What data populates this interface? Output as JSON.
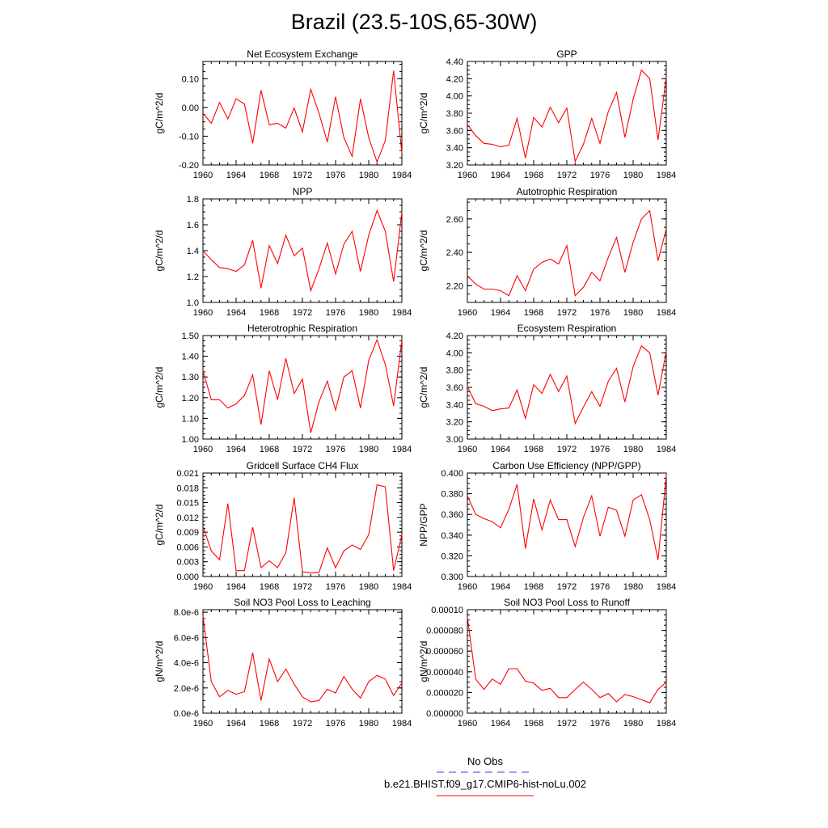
{
  "title": "Brazil (23.5-10S,65-30W)",
  "years": [
    1960,
    1961,
    1962,
    1963,
    1964,
    1965,
    1966,
    1967,
    1968,
    1969,
    1970,
    1971,
    1972,
    1973,
    1974,
    1975,
    1976,
    1977,
    1978,
    1979,
    1980,
    1981,
    1982,
    1983,
    1984
  ],
  "legend": {
    "obs_label": "No Obs",
    "case_label": "b.e21.BHIST.f09_g17.CMIP6-hist-noLu.002",
    "obs_color": "#3a3aff",
    "case_color": "#ff0000"
  },
  "chart_data": [
    {
      "type": "line",
      "title": "Net Ecosystem Exchange",
      "ylabel": "gC/m^2/d",
      "xlim": [
        1960,
        1984
      ],
      "ylim": [
        -0.2,
        0.16
      ],
      "xticks": [
        1960,
        1964,
        1968,
        1972,
        1976,
        1980,
        1984
      ],
      "yticks": [
        -0.2,
        -0.1,
        0,
        0.1
      ],
      "ytick_labels": [
        "-0.20",
        "-0.10",
        "0.00",
        "0.10"
      ],
      "values": [
        -0.02,
        -0.055,
        0.017,
        -0.04,
        0.03,
        0.012,
        -0.125,
        0.06,
        -0.06,
        -0.055,
        -0.072,
        -0.002,
        -0.085,
        0.063,
        -0.02,
        -0.12,
        0.037,
        -0.105,
        -0.17,
        0.03,
        -0.105,
        -0.19,
        -0.115,
        0.128,
        -0.16
      ]
    },
    {
      "type": "line",
      "title": "GPP",
      "ylabel": "gC/m^2/d",
      "xlim": [
        1960,
        1984
      ],
      "ylim": [
        3.2,
        4.4
      ],
      "xticks": [
        1960,
        1964,
        1968,
        1972,
        1976,
        1980,
        1984
      ],
      "yticks": [
        3.2,
        3.4,
        3.6,
        3.8,
        4.0,
        4.2,
        4.4
      ],
      "ytick_labels": [
        "3.20",
        "3.40",
        "3.60",
        "3.80",
        "4.00",
        "4.20",
        "4.40"
      ],
      "values": [
        3.67,
        3.54,
        3.45,
        3.44,
        3.41,
        3.43,
        3.74,
        3.28,
        3.75,
        3.64,
        3.87,
        3.69,
        3.86,
        3.24,
        3.44,
        3.74,
        3.45,
        3.82,
        4.04,
        3.52,
        3.96,
        4.3,
        4.2,
        3.49,
        4.22
      ]
    },
    {
      "type": "line",
      "title": "NPP",
      "ylabel": "gC/m^2/d",
      "xlim": [
        1960,
        1984
      ],
      "ylim": [
        1.0,
        1.8
      ],
      "xticks": [
        1960,
        1964,
        1968,
        1972,
        1976,
        1980,
        1984
      ],
      "yticks": [
        1.0,
        1.2,
        1.4,
        1.6,
        1.8
      ],
      "ytick_labels": [
        "1.0",
        "1.2",
        "1.4",
        "1.6",
        "1.8"
      ],
      "values": [
        1.4,
        1.33,
        1.27,
        1.26,
        1.24,
        1.29,
        1.48,
        1.11,
        1.44,
        1.3,
        1.52,
        1.36,
        1.42,
        1.09,
        1.26,
        1.46,
        1.22,
        1.45,
        1.55,
        1.24,
        1.52,
        1.71,
        1.55,
        1.16,
        1.7
      ]
    },
    {
      "type": "line",
      "title": "Autotrophic Respiration",
      "ylabel": "gC/m^2/d",
      "xlim": [
        1960,
        1984
      ],
      "ylim": [
        2.1,
        2.72
      ],
      "xticks": [
        1960,
        1964,
        1968,
        1972,
        1976,
        1980,
        1984
      ],
      "yticks": [
        2.2,
        2.4,
        2.6
      ],
      "ytick_labels": [
        "2.20",
        "2.40",
        "2.60"
      ],
      "values": [
        2.26,
        2.21,
        2.18,
        2.18,
        2.17,
        2.14,
        2.26,
        2.17,
        2.3,
        2.34,
        2.36,
        2.33,
        2.44,
        2.14,
        2.19,
        2.28,
        2.23,
        2.37,
        2.49,
        2.28,
        2.46,
        2.6,
        2.65,
        2.35,
        2.54
      ]
    },
    {
      "type": "line",
      "title": "Heterotrophic Respiration",
      "ylabel": "gC/m^2/d",
      "xlim": [
        1960,
        1984
      ],
      "ylim": [
        1.0,
        1.5
      ],
      "xticks": [
        1960,
        1964,
        1968,
        1972,
        1976,
        1980,
        1984
      ],
      "yticks": [
        1.0,
        1.1,
        1.2,
        1.3,
        1.4,
        1.5
      ],
      "ytick_labels": [
        "1.00",
        "1.10",
        "1.20",
        "1.30",
        "1.40",
        "1.50"
      ],
      "values": [
        1.33,
        1.19,
        1.19,
        1.15,
        1.17,
        1.21,
        1.31,
        1.07,
        1.33,
        1.19,
        1.39,
        1.22,
        1.29,
        1.03,
        1.18,
        1.28,
        1.14,
        1.3,
        1.33,
        1.15,
        1.38,
        1.48,
        1.36,
        1.16,
        1.48
      ]
    },
    {
      "type": "line",
      "title": "Ecosystem Respiration",
      "ylabel": "gC/m^2/d",
      "xlim": [
        1960,
        1984
      ],
      "ylim": [
        3.0,
        4.2
      ],
      "xticks": [
        1960,
        1964,
        1968,
        1972,
        1976,
        1980,
        1984
      ],
      "yticks": [
        3.0,
        3.2,
        3.4,
        3.6,
        3.8,
        4.0,
        4.2
      ],
      "ytick_labels": [
        "3.00",
        "3.20",
        "3.40",
        "3.60",
        "3.80",
        "4.00",
        "4.20"
      ],
      "values": [
        3.61,
        3.41,
        3.38,
        3.33,
        3.35,
        3.36,
        3.57,
        3.24,
        3.63,
        3.53,
        3.75,
        3.55,
        3.73,
        3.18,
        3.37,
        3.55,
        3.38,
        3.67,
        3.82,
        3.43,
        3.84,
        4.08,
        4.0,
        3.51,
        4.02
      ]
    },
    {
      "type": "line",
      "title": "Gridcell Surface CH4 Flux",
      "ylabel": "gC/m^2/d",
      "xlim": [
        1960,
        1984
      ],
      "ylim": [
        0,
        0.021
      ],
      "xticks": [
        1960,
        1964,
        1968,
        1972,
        1976,
        1980,
        1984
      ],
      "yticks": [
        0,
        0.003,
        0.006,
        0.009,
        0.012,
        0.015,
        0.018,
        0.021
      ],
      "ytick_labels": [
        "0.000",
        "0.003",
        "0.006",
        "0.009",
        "0.012",
        "0.015",
        "0.018",
        "0.021"
      ],
      "values": [
        0.0102,
        0.0052,
        0.0034,
        0.0148,
        0.0012,
        0.0012,
        0.01,
        0.0018,
        0.0032,
        0.0018,
        0.0048,
        0.016,
        0.001,
        0.0007,
        0.0008,
        0.0058,
        0.0018,
        0.0052,
        0.0064,
        0.0055,
        0.0085,
        0.0186,
        0.0182,
        0.0012,
        0.0085
      ]
    },
    {
      "type": "line",
      "title": "Carbon Use Efficiency (NPP/GPP)",
      "ylabel": "NPP/GPP",
      "xlim": [
        1960,
        1984
      ],
      "ylim": [
        0.3,
        0.4
      ],
      "xticks": [
        1960,
        1964,
        1968,
        1972,
        1976,
        1980,
        1984
      ],
      "yticks": [
        0.3,
        0.32,
        0.34,
        0.36,
        0.38,
        0.4
      ],
      "ytick_labels": [
        "0.300",
        "0.320",
        "0.340",
        "0.360",
        "0.380",
        "0.400"
      ],
      "values": [
        0.378,
        0.36,
        0.356,
        0.353,
        0.347,
        0.365,
        0.389,
        0.327,
        0.375,
        0.345,
        0.374,
        0.355,
        0.355,
        0.329,
        0.357,
        0.378,
        0.339,
        0.367,
        0.364,
        0.339,
        0.374,
        0.379,
        0.355,
        0.316,
        0.398
      ]
    },
    {
      "type": "line",
      "title": "Soil NO3 Pool Loss to Leaching",
      "ylabel": "gN/m^2/d",
      "xlim": [
        1960,
        1984
      ],
      "ylim": [
        0,
        8.2e-06
      ],
      "xticks": [
        1960,
        1964,
        1968,
        1972,
        1976,
        1980,
        1984
      ],
      "yticks": [
        0,
        2e-06,
        4e-06,
        6e-06,
        8e-06
      ],
      "ytick_labels": [
        "0.0e-6",
        "2.0e-6",
        "4.0e-6",
        "6.0e-6",
        "8.0e-6"
      ],
      "values": [
        7.7e-06,
        2.5e-06,
        1.3e-06,
        1.8e-06,
        1.5e-06,
        1.7e-06,
        4.8e-06,
        1e-06,
        4.3e-06,
        2.5e-06,
        3.5e-06,
        2.3e-06,
        1.3e-06,
        9e-07,
        1e-06,
        1.9e-06,
        1.6e-06,
        2.9e-06,
        1.9e-06,
        1.2e-06,
        2.5e-06,
        3e-06,
        2.7e-06,
        1.4e-06,
        2.4e-06
      ]
    },
    {
      "type": "line",
      "title": "Soil NO3 Pool Loss to Runoff",
      "ylabel": "gN/m^2/d",
      "xlim": [
        1960,
        1984
      ],
      "ylim": [
        0,
        0.0001
      ],
      "xticks": [
        1960,
        1964,
        1968,
        1972,
        1976,
        1980,
        1984
      ],
      "yticks": [
        0,
        2e-05,
        4e-05,
        6e-05,
        8e-05,
        0.0001
      ],
      "ytick_labels": [
        "0.000000",
        "0.000020",
        "0.000040",
        "0.000060",
        "0.000080",
        "0.00010"
      ],
      "values": [
        9.3e-05,
        3.3e-05,
        2.3e-05,
        3.3e-05,
        2.8e-05,
        4.3e-05,
        4.3e-05,
        3.1e-05,
        2.9e-05,
        2.2e-05,
        2.4e-05,
        1.5e-05,
        1.5e-05,
        2.3e-05,
        3e-05,
        2.3e-05,
        1.5e-05,
        1.9e-05,
        1.1e-05,
        1.8e-05,
        1.6e-05,
        1.3e-05,
        1e-05,
        2.3e-05,
        3e-05
      ]
    }
  ]
}
